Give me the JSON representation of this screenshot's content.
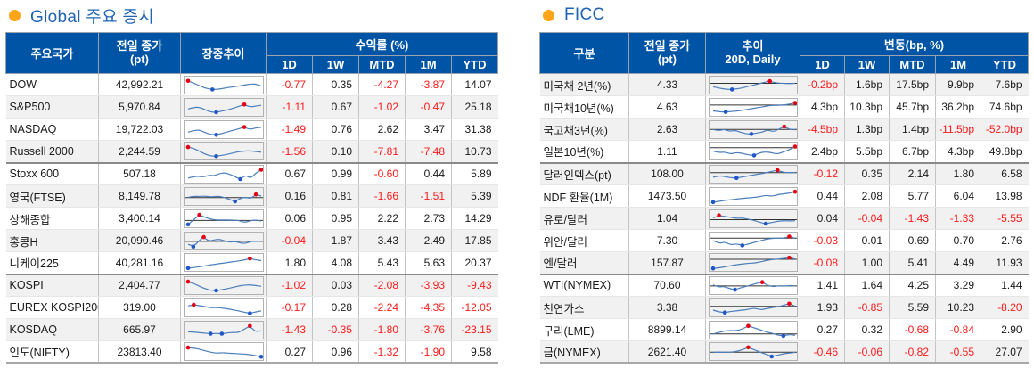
{
  "colors": {
    "header_bg": "#0054A6",
    "title_text": "#1F63B5",
    "bullet": "#FFA517",
    "negative": "#FF1A1A",
    "spark_line": "#4A7EBB",
    "spark_max_dot": "#E60012",
    "spark_min_dot": "#1F56C8"
  },
  "left_panel": {
    "title": "Global 주요 증시",
    "table": {
      "headers": {
        "name": "주요국가",
        "close": "전일 종가\n(pt)",
        "trend": "장중추이",
        "group": "수익률 (%)"
      },
      "period_headers": [
        "1D",
        "1W",
        "MTD",
        "1M",
        "YTD"
      ],
      "rows": [
        {
          "label": "DOW",
          "close": "42,992.21",
          "values": [
            "-0.77",
            "0.35",
            "-4.27",
            "-3.87",
            "14.07"
          ],
          "spark": {
            "y": [
              0.12,
              0.3,
              0.5,
              0.68,
              0.76,
              0.74,
              0.66,
              0.58,
              0.52,
              0.45,
              0.36,
              0.34,
              0.5
            ],
            "red": [
              0
            ],
            "blue": [
              4
            ],
            "baseline": null
          }
        },
        {
          "label": "S&P500",
          "close": "5,970.84",
          "values": [
            "-1.11",
            "0.67",
            "-1.02",
            "-0.47",
            "25.18"
          ],
          "spark": {
            "y": [
              0.55,
              0.44,
              0.42,
              0.6,
              0.78,
              0.8,
              0.72,
              0.62,
              0.5,
              0.36,
              0.22,
              0.4,
              0.34,
              0.28
            ],
            "red": [
              10
            ],
            "blue": [
              5
            ],
            "baseline": null
          }
        },
        {
          "label": "NASDAQ",
          "close": "19,722.03",
          "values": [
            "-1.49",
            "0.76",
            "2.62",
            "3.47",
            "31.38"
          ],
          "spark": {
            "y": [
              0.62,
              0.5,
              0.46,
              0.64,
              0.8,
              0.82,
              0.72,
              0.6,
              0.48,
              0.38,
              0.24,
              0.42,
              0.3,
              0.26
            ],
            "red": [
              10
            ],
            "blue": [
              5
            ],
            "baseline": null
          }
        },
        {
          "label": "Russell 2000",
          "close": "2,244.59",
          "values": [
            "-1.56",
            "0.10",
            "-7.81",
            "-7.48",
            "10.73"
          ],
          "group_end": true,
          "spark": {
            "y": [
              0.14,
              0.24,
              0.44,
              0.66,
              0.8,
              0.82,
              0.76,
              0.68,
              0.58,
              0.48,
              0.44,
              0.42,
              0.46,
              0.52
            ],
            "red": [
              0
            ],
            "blue": [
              5
            ],
            "baseline": null
          }
        },
        {
          "label": "Stoxx 600",
          "close": "507.18",
          "values": [
            "0.67",
            "0.99",
            "-0.60",
            "0.44",
            "5.89"
          ],
          "spark": {
            "y": [
              0.72,
              0.62,
              0.58,
              0.64,
              0.5,
              0.56,
              0.38,
              0.32,
              0.44,
              0.62,
              0.8,
              0.5,
              0.74,
              0.34,
              0.1
            ],
            "red": [
              14
            ],
            "blue": [
              10
            ],
            "baseline": null
          }
        },
        {
          "label": "영국(FTSE)",
          "close": "8,149.78",
          "values": [
            "0.16",
            "0.81",
            "-1.66",
            "-1.51",
            "5.39"
          ],
          "spark": {
            "y": [
              0.5,
              0.42,
              0.44,
              0.4,
              0.46,
              0.44,
              0.42,
              0.52,
              0.66,
              0.8,
              0.58,
              0.48,
              0.6,
              0.28,
              0.4
            ],
            "red": [
              13
            ],
            "blue": [
              9
            ],
            "baseline": 0.52
          }
        },
        {
          "label": "상해종합",
          "close": "3,400.14",
          "values": [
            "0.06",
            "0.95",
            "2.22",
            "2.73",
            "14.29"
          ],
          "spark": {
            "y": [
              0.86,
              0.5,
              0.14,
              0.32,
              0.46,
              0.52,
              0.53,
              0.53,
              0.54,
              0.55,
              0.72,
              0.58,
              0.52,
              0.6
            ],
            "red": [
              2
            ],
            "blue": [
              0
            ],
            "baseline": 0.56
          }
        },
        {
          "label": "홍콩H",
          "close": "20,090.46",
          "values": [
            "-0.04",
            "1.87",
            "3.43",
            "2.49",
            "17.85"
          ],
          "spark": {
            "y": [
              0.68,
              0.86,
              0.44,
              0.14,
              0.46,
              0.34,
              0.3,
              0.42,
              0.52,
              0.46,
              0.58,
              0.62,
              0.46,
              0.46,
              0.46
            ],
            "red": [
              3
            ],
            "blue": [
              1
            ],
            "baseline": 0.46
          }
        },
        {
          "label": "니케이225",
          "close": "40,281.16",
          "values": [
            "1.80",
            "4.08",
            "5.43",
            "5.63",
            "20.37"
          ],
          "group_end": true,
          "spark": {
            "y": [
              0.86,
              0.82,
              0.76,
              0.68,
              0.62,
              0.56,
              0.5,
              0.44,
              0.38,
              0.32,
              0.26,
              0.14,
              0.24,
              0.3
            ],
            "red": [
              11
            ],
            "blue": [
              0
            ],
            "baseline": null
          }
        },
        {
          "label": "KOSPI",
          "close": "2,404.77",
          "values": [
            "-1.02",
            "0.03",
            "-2.08",
            "-3.93",
            "-9.43"
          ],
          "spark": {
            "y": [
              0.14,
              0.28,
              0.48,
              0.66,
              0.78,
              0.8,
              0.74,
              0.66,
              0.56,
              0.46,
              0.4,
              0.38,
              0.42,
              0.48
            ],
            "red": [
              0
            ],
            "blue": [
              5
            ],
            "baseline": null
          }
        },
        {
          "label": "EUREX KOSPI200",
          "close": "319.00",
          "values": [
            "-0.17",
            "0.28",
            "-2.24",
            "-4.35",
            "-12.05"
          ],
          "spark": {
            "y": [
              0.28,
              0.2,
              0.26,
              0.34,
              0.42,
              0.4,
              0.44,
              0.5,
              0.58,
              0.66,
              0.76,
              0.84,
              0.74,
              0.66
            ],
            "red": [
              1
            ],
            "blue": [
              11
            ],
            "baseline": null
          }
        },
        {
          "label": "KOSDAQ",
          "close": "665.97",
          "values": [
            "-1.43",
            "-0.35",
            "-1.80",
            "-3.76",
            "-23.15"
          ],
          "spark": {
            "y": [
              0.56,
              0.58,
              0.62,
              0.66,
              0.7,
              0.68,
              0.7,
              0.64,
              0.6,
              0.62,
              0.36,
              0.12,
              0.56,
              0.48
            ],
            "red": [
              11
            ],
            "blue": [
              4,
              6
            ],
            "baseline": null
          }
        },
        {
          "label": "인도(NIFTY)",
          "close": "23813.40",
          "values": [
            "0.27",
            "0.96",
            "-1.32",
            "-1.90",
            "9.58"
          ],
          "spark": {
            "y": [
              0.14,
              0.18,
              0.26,
              0.38,
              0.48,
              0.56,
              0.52,
              0.55,
              0.58,
              0.6,
              0.62,
              0.66,
              0.74,
              0.82
            ],
            "red": [
              0
            ],
            "blue": [
              13
            ],
            "baseline": null
          }
        }
      ]
    }
  },
  "right_panel": {
    "title": "FICC",
    "table": {
      "headers": {
        "name": "구분",
        "close": "전일 종가\n(pt)",
        "trend": "추이\n20D, Daily",
        "group": "변동(bp, %)"
      },
      "period_headers": [
        "1D",
        "1W",
        "MTD",
        "1M",
        "YTD"
      ],
      "rows": [
        {
          "label": "미국채 2년(%)",
          "close": "4.33",
          "values": [
            "-0.2bp",
            "1.6bp",
            "17.5bp",
            "9.9bp",
            "7.6bp"
          ],
          "spark": {
            "y": [
              0.55,
              0.66,
              0.74,
              0.76,
              0.7,
              0.6,
              0.48,
              0.36,
              0.24,
              0.14,
              0.28,
              0.3,
              0.32,
              0.3
            ],
            "red": [
              9
            ],
            "blue": [
              3
            ],
            "baseline": 0.3
          }
        },
        {
          "label": "미국채10년(%)",
          "close": "4.63",
          "values": [
            "4.3bp",
            "10.3bp",
            "45.7bp",
            "36.2bp",
            "74.6bp"
          ],
          "spark": {
            "y": [
              0.7,
              0.76,
              0.78,
              0.74,
              0.7,
              0.62,
              0.54,
              0.46,
              0.38,
              0.3,
              0.28,
              0.26,
              0.2,
              0.1
            ],
            "red": [
              13
            ],
            "blue": [
              2
            ],
            "baseline": 0.26
          }
        },
        {
          "label": "국고채3년(%)",
          "close": "2.63",
          "values": [
            "-4.5bp",
            "1.3bp",
            "1.4bp",
            "-11.5bp",
            "-52.0bp"
          ],
          "spark": {
            "y": [
              0.42,
              0.52,
              0.4,
              0.56,
              0.48,
              0.62,
              0.74,
              0.76,
              0.68,
              0.62,
              0.44,
              0.6,
              0.4,
              0.2,
              0.42,
              0.44
            ],
            "red": [
              13
            ],
            "blue": [
              7
            ],
            "baseline": 0.42
          }
        },
        {
          "label": "일본10년(%)",
          "close": "1.11",
          "values": [
            "2.4bp",
            "5.5bp",
            "6.7bp",
            "4.3bp",
            "49.8bp"
          ],
          "group_end": true,
          "spark": {
            "y": [
              0.44,
              0.56,
              0.5,
              0.66,
              0.54,
              0.6,
              0.72,
              0.76,
              0.56,
              0.5,
              0.56,
              0.66,
              0.5,
              0.34,
              0.1
            ],
            "red": [
              14
            ],
            "blue": [
              7
            ],
            "baseline": 0.18
          }
        },
        {
          "label": "달러인덱스(pt)",
          "close": "108.00",
          "values": [
            "-0.12",
            "0.35",
            "2.14",
            "1.80",
            "6.58"
          ],
          "spark": {
            "y": [
              0.66,
              0.54,
              0.6,
              0.7,
              0.72,
              0.64,
              0.56,
              0.48,
              0.4,
              0.34,
              0.22,
              0.14,
              0.3,
              0.32,
              0.3
            ],
            "red": [
              11
            ],
            "blue": [
              4
            ],
            "baseline": 0.32
          }
        },
        {
          "label": "NDF 환율(1M)",
          "close": "1473.50",
          "values": [
            "0.44",
            "2.08",
            "5.77",
            "6.04",
            "13.98"
          ],
          "spark": {
            "y": [
              0.86,
              0.8,
              0.72,
              0.68,
              0.62,
              0.58,
              0.54,
              0.5,
              0.44,
              0.34,
              0.42,
              0.3,
              0.24,
              0.18,
              0.08
            ],
            "red": [
              14
            ],
            "blue": [
              0
            ],
            "baseline": 0.1
          }
        },
        {
          "label": "유로/달러",
          "close": "1.04",
          "values": [
            "0.04",
            "-0.04",
            "-1.43",
            "-1.33",
            "-5.55"
          ],
          "spark": {
            "y": [
              0.36,
              0.18,
              0.26,
              0.32,
              0.4,
              0.38,
              0.46,
              0.56,
              0.7,
              0.8,
              0.72,
              0.62,
              0.58,
              0.6,
              0.58
            ],
            "red": [
              1
            ],
            "blue": [
              9
            ],
            "baseline": 0.5
          }
        },
        {
          "label": "위안/달러",
          "close": "7.30",
          "values": [
            "-0.03",
            "0.01",
            "0.69",
            "0.70",
            "2.76"
          ],
          "spark": {
            "y": [
              0.4,
              0.62,
              0.5,
              0.72,
              0.64,
              0.76,
              0.66,
              0.54,
              0.42,
              0.3,
              0.24,
              0.22,
              0.22,
              0.1,
              0.22
            ],
            "red": [
              13
            ],
            "blue": [
              5
            ],
            "baseline": 0.22
          }
        },
        {
          "label": "엔/달러",
          "close": "157.87",
          "values": [
            "-0.08",
            "1.00",
            "5.41",
            "4.49",
            "11.93"
          ],
          "group_end": true,
          "spark": {
            "y": [
              0.88,
              0.84,
              0.76,
              0.68,
              0.6,
              0.55,
              0.5,
              0.48,
              0.4,
              0.3,
              0.22,
              0.2,
              0.14,
              0.08,
              0.18
            ],
            "red": [
              13
            ],
            "blue": [
              0
            ],
            "baseline": 0.2
          }
        },
        {
          "label": "WTI(NYMEX)",
          "close": "70.60",
          "values": [
            "1.41",
            "1.64",
            "4.25",
            "3.29",
            "1.44"
          ],
          "spark": {
            "y": [
              0.38,
              0.56,
              0.48,
              0.66,
              0.74,
              0.6,
              0.5,
              0.38,
              0.26,
              0.18,
              0.42,
              0.52,
              0.44,
              0.48,
              0.42,
              0.46
            ],
            "red": [
              9
            ],
            "blue": [
              4
            ],
            "baseline": 0.46
          }
        },
        {
          "label": "천연가스",
          "close": "3.38",
          "values": [
            "1.93",
            "-0.85",
            "5.59",
            "10.23",
            "-8.20"
          ],
          "spark": {
            "y": [
              0.6,
              0.74,
              0.78,
              0.7,
              0.66,
              0.6,
              0.54,
              0.44,
              0.58,
              0.5,
              0.42,
              0.34,
              0.24,
              0.12,
              0.3
            ],
            "red": [
              13
            ],
            "blue": [
              2
            ],
            "baseline": 0.32
          }
        },
        {
          "label": "구리(LME)",
          "close": "8899.14",
          "values": [
            "0.27",
            "0.32",
            "-0.68",
            "-0.84",
            "2.90"
          ],
          "spark": {
            "y": [
              0.72,
              0.6,
              0.5,
              0.46,
              0.48,
              0.34,
              0.12,
              0.26,
              0.4,
              0.56,
              0.66,
              0.8,
              0.86,
              0.76,
              0.82
            ],
            "red": [
              6
            ],
            "blue": [
              12
            ],
            "baseline": 0.72
          }
        },
        {
          "label": "금(NYMEX)",
          "close": "2621.40",
          "values": [
            "-0.46",
            "-0.06",
            "-0.82",
            "-0.55",
            "27.07"
          ],
          "spark": {
            "y": [
              0.5,
              0.48,
              0.5,
              0.48,
              0.42,
              0.3,
              0.12,
              0.3,
              0.48,
              0.62,
              0.8,
              0.7,
              0.6,
              0.54,
              0.5
            ],
            "red": [
              6
            ],
            "blue": [
              10
            ],
            "baseline": 0.48
          }
        }
      ]
    }
  }
}
